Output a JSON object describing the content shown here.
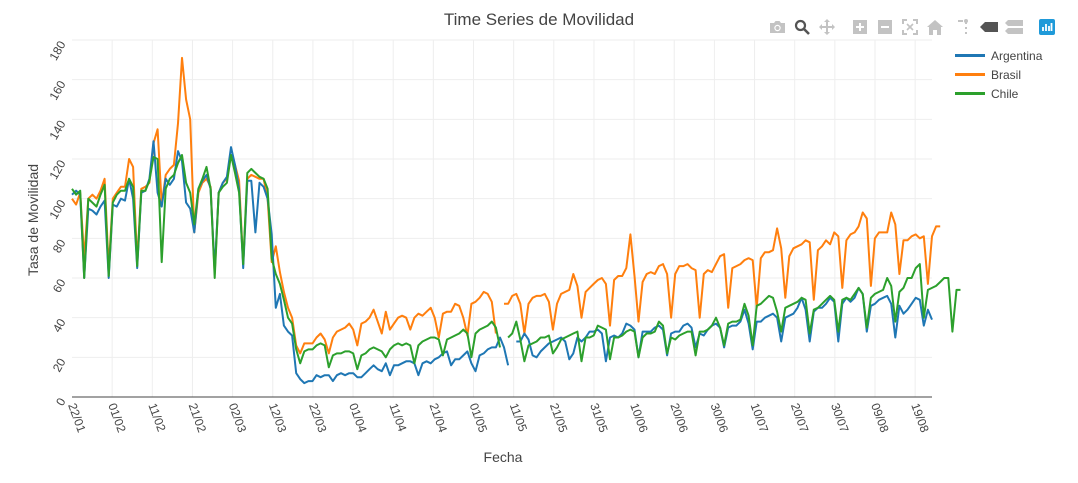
{
  "colors": {
    "argentina": "#1f77b4",
    "brasil": "#ff7f0e",
    "chile": "#2ca02c",
    "modebar_icon": "#c3c3c3",
    "modebar_active": "#545454",
    "plotly_logo": "#1f9ad9"
  },
  "modebar": {
    "icons": [
      "camera-icon",
      "zoom-icon",
      "pan-icon",
      "zoom-in-icon",
      "zoom-out-icon",
      "autoscale-icon",
      "reset-axes-icon",
      "spike-lines-icon",
      "hover-closest-icon",
      "hover-compare-icon",
      "plotly-logo-icon"
    ]
  },
  "chart_data": {
    "type": "line",
    "title": "Time Series de Movilidad",
    "xlabel": "Fecha",
    "ylabel": "Tasa de Movilidad",
    "ylim": [
      0,
      180
    ],
    "yticks": [
      "0",
      "20",
      "40",
      "60",
      "80",
      "100",
      "120",
      "140",
      "160",
      "180"
    ],
    "xticks": [
      "22/01",
      "01/02",
      "11/02",
      "21/02",
      "02/03",
      "12/03",
      "22/03",
      "01/04",
      "11/04",
      "21/04",
      "01/05",
      "11/05",
      "21/05",
      "31/05",
      "10/06",
      "20/06",
      "30/06",
      "10/07",
      "20/07",
      "30/07",
      "09/08",
      "19/08"
    ],
    "x_start": "22/01",
    "x_end": "25/08",
    "grid": true,
    "legend_position": "top-right",
    "series": [
      {
        "name": "Argentina",
        "values": [
          102,
          104,
          102,
          60,
          95,
          94,
          92,
          96,
          99,
          60,
          97,
          96,
          100,
          99,
          110,
          100,
          65,
          103,
          104,
          110,
          129,
          103,
          96,
          110,
          107,
          110,
          124,
          119,
          98,
          95,
          83,
          105,
          109,
          112,
          105,
          64,
          103,
          108,
          111,
          126,
          117,
          105,
          65,
          109,
          109,
          83,
          108,
          106,
          100,
          82,
          45,
          52,
          36,
          33,
          31,
          12,
          9,
          7,
          8,
          8,
          11,
          10,
          11,
          11,
          8,
          11,
          12,
          11,
          12,
          12,
          10,
          10,
          12,
          14,
          16,
          14,
          13,
          17,
          11,
          16,
          16,
          17,
          18,
          18,
          17,
          11,
          17,
          18,
          17,
          19,
          20,
          22,
          23,
          16,
          19,
          19,
          21,
          23,
          17,
          13,
          21,
          22,
          24,
          25,
          25,
          30,
          25,
          16,
          null,
          28,
          28,
          32,
          29,
          21,
          20,
          23,
          25,
          27,
          28,
          29,
          30,
          28,
          19,
          22,
          30,
          28,
          30,
          33,
          33,
          34,
          32,
          18,
          30,
          31,
          30,
          32,
          37,
          36,
          34,
          20,
          33,
          33,
          33,
          35,
          36,
          34,
          21,
          32,
          33,
          33,
          36,
          37,
          35,
          25,
          32,
          31,
          34,
          36,
          37,
          35,
          25,
          35,
          36,
          36,
          38,
          44,
          37,
          24,
          38,
          38,
          40,
          41,
          42,
          40,
          28,
          40,
          41,
          42,
          45,
          50,
          44,
          28,
          43,
          45,
          45,
          47,
          50,
          48,
          28,
          47,
          50,
          48,
          50,
          55,
          52,
          33,
          46,
          47,
          49,
          50,
          51,
          47,
          30,
          46,
          42,
          44,
          47,
          50,
          49,
          36,
          44,
          39
        ]
      },
      {
        "name": "Brasil",
        "values": [
          100,
          97,
          103,
          70,
          100,
          102,
          100,
          104,
          110,
          65,
          100,
          103,
          106,
          106,
          120,
          116,
          68,
          105,
          106,
          108,
          128,
          135,
          97,
          112,
          115,
          117,
          138,
          171,
          150,
          140,
          83,
          103,
          108,
          110,
          106,
          62,
          103,
          108,
          110,
          122,
          117,
          109,
          67,
          110,
          112,
          111,
          110,
          110,
          100,
          68,
          76,
          63,
          53,
          45,
          40,
          26,
          22,
          27,
          27,
          27,
          30,
          32,
          29,
          22,
          30,
          33,
          34,
          35,
          37,
          34,
          26,
          37,
          38,
          40,
          44,
          38,
          32,
          43,
          34,
          37,
          40,
          41,
          40,
          34,
          40,
          42,
          41,
          43,
          45,
          40,
          30,
          42,
          43,
          43,
          47,
          46,
          40,
          31,
          47,
          48,
          50,
          53,
          52,
          48,
          32,
          null,
          47,
          47,
          51,
          52,
          47,
          32,
          47,
          50,
          51,
          51,
          52,
          48,
          34,
          47,
          52,
          53,
          54,
          62,
          56,
          40,
          53,
          55,
          57,
          59,
          60,
          57,
          36,
          59,
          61,
          61,
          65,
          82,
          61,
          38,
          58,
          62,
          63,
          62,
          66,
          67,
          62,
          40,
          62,
          66,
          66,
          67,
          65,
          64,
          40,
          62,
          64,
          63,
          67,
          71,
          72,
          45,
          65,
          66,
          67,
          69,
          70,
          69,
          45,
          70,
          73,
          73,
          74,
          85,
          75,
          50,
          71,
          75,
          76,
          77,
          79,
          78,
          49,
          74,
          76,
          79,
          77,
          83,
          81,
          55,
          79,
          82,
          83,
          86,
          93,
          90,
          56,
          80,
          83,
          83,
          83,
          93,
          87,
          62,
          79,
          79,
          81,
          82,
          80,
          81,
          57,
          81,
          86,
          86
        ]
      },
      {
        "name": "Chile",
        "values": [
          105,
          102,
          104,
          60,
          100,
          98,
          96,
          102,
          107,
          61,
          98,
          102,
          104,
          104,
          110,
          106,
          66,
          104,
          104,
          109,
          121,
          120,
          68,
          105,
          110,
          112,
          118,
          122,
          108,
          103,
          87,
          105,
          110,
          116,
          105,
          60,
          103,
          106,
          108,
          122,
          113,
          103,
          67,
          113,
          115,
          113,
          111,
          110,
          105,
          70,
          62,
          57,
          49,
          40,
          37,
          24,
          17,
          23,
          24,
          24,
          26,
          27,
          26,
          15,
          21,
          22,
          22,
          23,
          23,
          22,
          14,
          21,
          22,
          24,
          25,
          24,
          23,
          20,
          24,
          26,
          27,
          26,
          27,
          26,
          17,
          26,
          28,
          29,
          30,
          30,
          29,
          21,
          29,
          30,
          31,
          32,
          34,
          32,
          20,
          32,
          34,
          35,
          36,
          38,
          35,
          25,
          null,
          30,
          32,
          38,
          29,
          18,
          26,
          27,
          28,
          30,
          30,
          31,
          22,
          25,
          29,
          30,
          31,
          32,
          33,
          18,
          30,
          30,
          31,
          36,
          35,
          34,
          19,
          30,
          30,
          31,
          33,
          34,
          33,
          20,
          30,
          32,
          32,
          33,
          38,
          36,
          22,
          30,
          29,
          31,
          32,
          33,
          33,
          21,
          33,
          33,
          34,
          36,
          40,
          35,
          26,
          37,
          38,
          38,
          39,
          47,
          41,
          26,
          46,
          47,
          49,
          51,
          50,
          43,
          33,
          45,
          46,
          47,
          48,
          50,
          49,
          32,
          44,
          45,
          47,
          49,
          51,
          49,
          33,
          49,
          50,
          49,
          52,
          55,
          52,
          35,
          50,
          52,
          53,
          54,
          60,
          56,
          38,
          53,
          55,
          60,
          60,
          65,
          67,
          40,
          54,
          55,
          56,
          58,
          60,
          60,
          33,
          54,
          54
        ]
      }
    ]
  }
}
